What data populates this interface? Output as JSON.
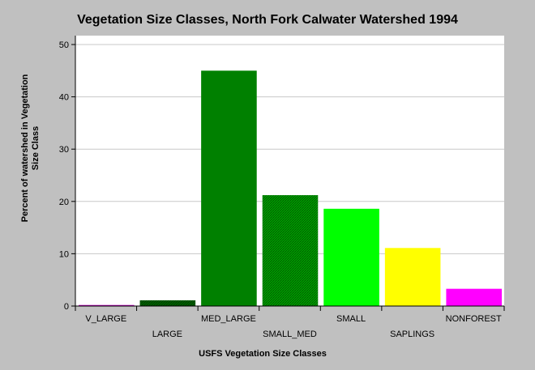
{
  "chart_data": {
    "type": "bar",
    "title": "Vegetation Size Classes, North Fork Calwater Watershed 1994",
    "xlabel": "USFS Vegetation Size Classes",
    "ylabel_lines": [
      "Percent of watershed in Vegetation",
      "Size Class"
    ],
    "ylim": [
      0,
      50
    ],
    "yticks": [
      0,
      10,
      20,
      30,
      40,
      50
    ],
    "grid": true,
    "legend": "none",
    "categories": [
      "V_LARGE",
      "LARGE",
      "MED_LARGE",
      "SMALL_MED",
      "SMALL",
      "SAPLINGS",
      "NONFOREST"
    ],
    "values": [
      0.2,
      1.1,
      45.0,
      21.2,
      18.6,
      11.1,
      3.3
    ],
    "colors": [
      "#c000c0",
      "#006400",
      "#008000",
      "#00a000",
      "#00ff00",
      "#ffff00",
      "#ff00ff"
    ],
    "hatched": [
      false,
      true,
      false,
      true,
      false,
      false,
      false
    ]
  }
}
